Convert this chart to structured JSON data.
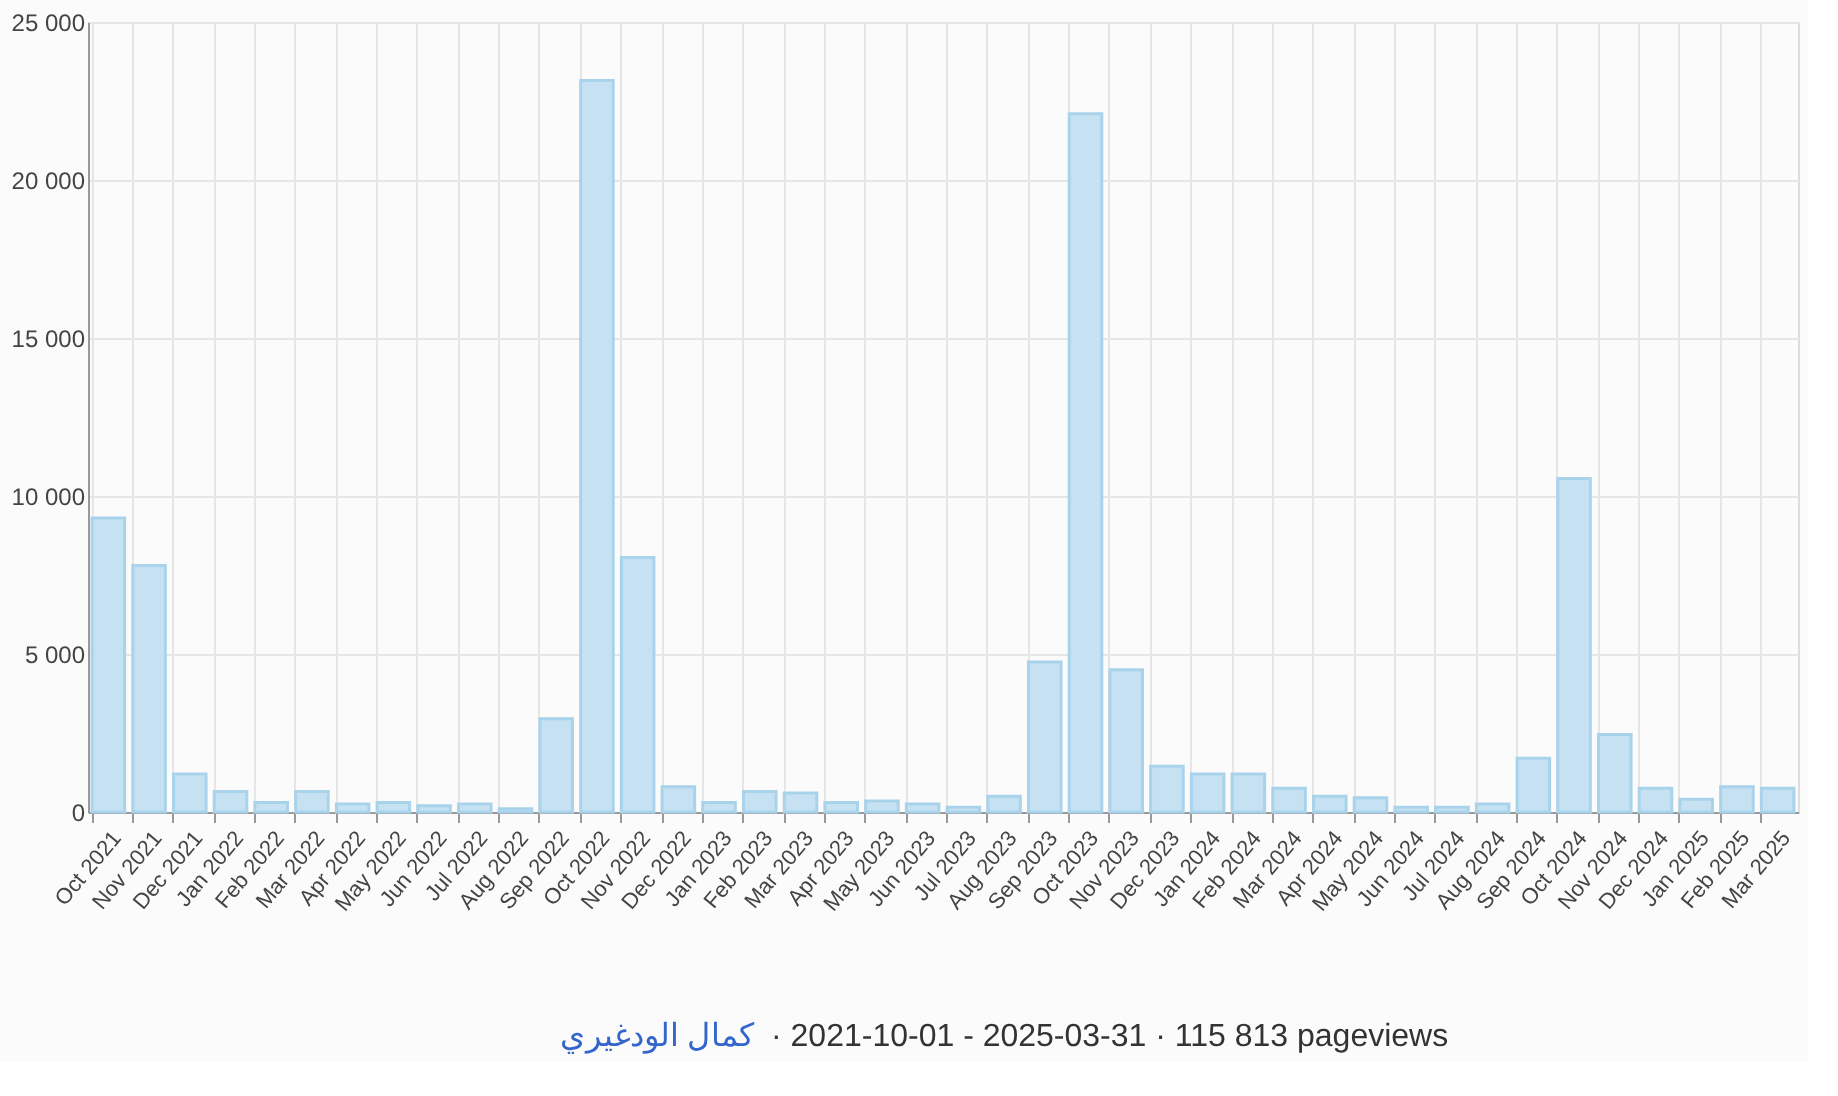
{
  "chart_data": {
    "type": "bar",
    "categories": [
      "Oct 2021",
      "Nov 2021",
      "Dec 2021",
      "Jan 2022",
      "Feb 2022",
      "Mar 2022",
      "Apr 2022",
      "May 2022",
      "Jun 2022",
      "Jul 2022",
      "Aug 2022",
      "Sep 2022",
      "Oct 2022",
      "Nov 2022",
      "Dec 2022",
      "Jan 2023",
      "Feb 2023",
      "Mar 2023",
      "Apr 2023",
      "May 2023",
      "Jun 2023",
      "Jul 2023",
      "Aug 2023",
      "Sep 2023",
      "Oct 2023",
      "Nov 2023",
      "Dec 2023",
      "Jan 2024",
      "Feb 2024",
      "Mar 2024",
      "Apr 2024",
      "May 2024",
      "Jun 2024",
      "Jul 2024",
      "Aug 2024",
      "Sep 2024",
      "Oct 2024",
      "Nov 2024",
      "Dec 2024",
      "Jan 2025",
      "Feb 2025",
      "Mar 2025"
    ],
    "series": [
      {
        "color": "#c6e2f2",
        "values": [
          9300,
          7800,
          1200,
          650,
          300,
          650,
          250,
          300,
          200,
          250,
          100,
          2950,
          23150,
          8050,
          800,
          300,
          650,
          600,
          300,
          350,
          250,
          150,
          500,
          4750,
          22100,
          4500,
          1450,
          1200,
          1200,
          750,
          500,
          450,
          150,
          150,
          250,
          1700,
          10550,
          2450,
          750,
          400,
          800,
          750
        ]
      }
    ],
    "ylim": [
      0,
      25000
    ],
    "yticks": [
      {
        "value": 0,
        "label": "0"
      },
      {
        "value": 5000,
        "label": "5 000"
      },
      {
        "value": 10000,
        "label": "10 000"
      },
      {
        "value": 15000,
        "label": "15 000"
      },
      {
        "value": 20000,
        "label": "20 000"
      },
      {
        "value": 25000,
        "label": "25 000"
      }
    ],
    "grid": true,
    "annotations": [
      "كمال الودغيري",
      "· 2021-10-01 - 2025-03-31 · 115 813 pageviews"
    ]
  }
}
